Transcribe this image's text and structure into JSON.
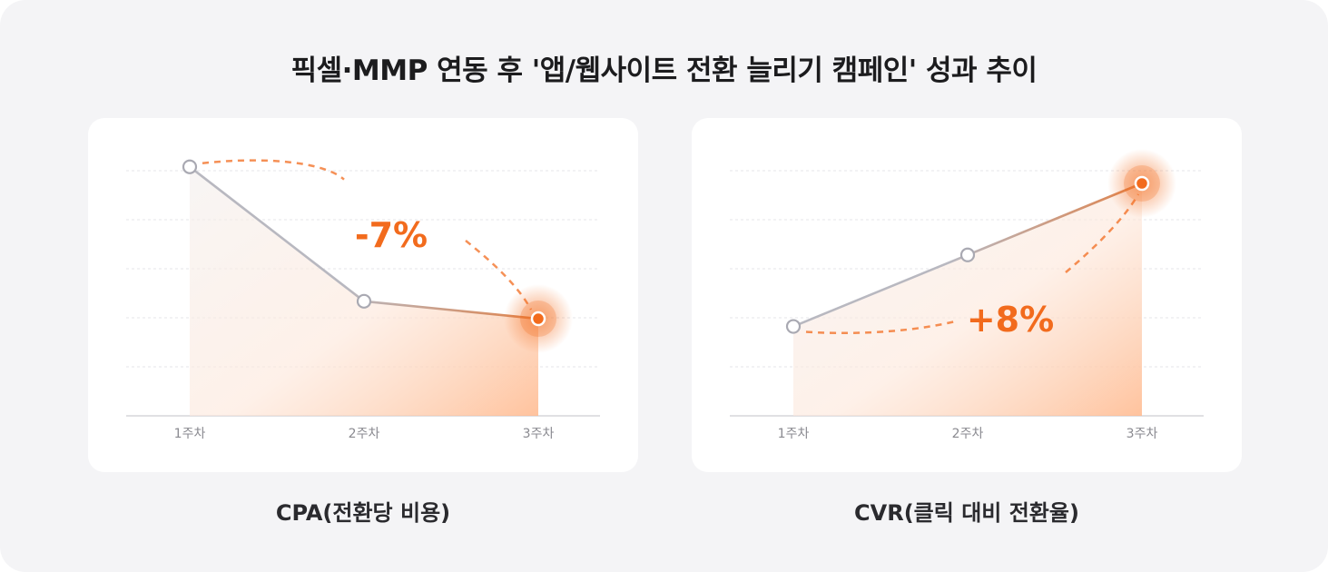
{
  "title": "픽셀·MMP 연동 후 '앱/웹사이트 전환 늘리기 캠페인' 성과 추이",
  "colors": {
    "accent": "#f26b1d",
    "line_gray": "#b8b8c0",
    "background": "#f4f4f6",
    "card": "#ffffff"
  },
  "chart_data": [
    {
      "type": "line",
      "caption": "CPA(전환당 비용)",
      "categories": [
        "1주차",
        "2주차",
        "3주차"
      ],
      "values": [
        100,
        46,
        39
      ],
      "ylim": [
        0,
        105
      ],
      "change_label": "-7%",
      "grid": true,
      "highlight_index": 2
    },
    {
      "type": "line",
      "caption": "CVR(클릭 대비 전환율)",
      "categories": [
        "1주차",
        "2주차",
        "3주차"
      ],
      "values": [
        40,
        72,
        104
      ],
      "ylim": [
        0,
        117
      ],
      "change_label": "+8%",
      "grid": true,
      "highlight_index": 2
    }
  ]
}
